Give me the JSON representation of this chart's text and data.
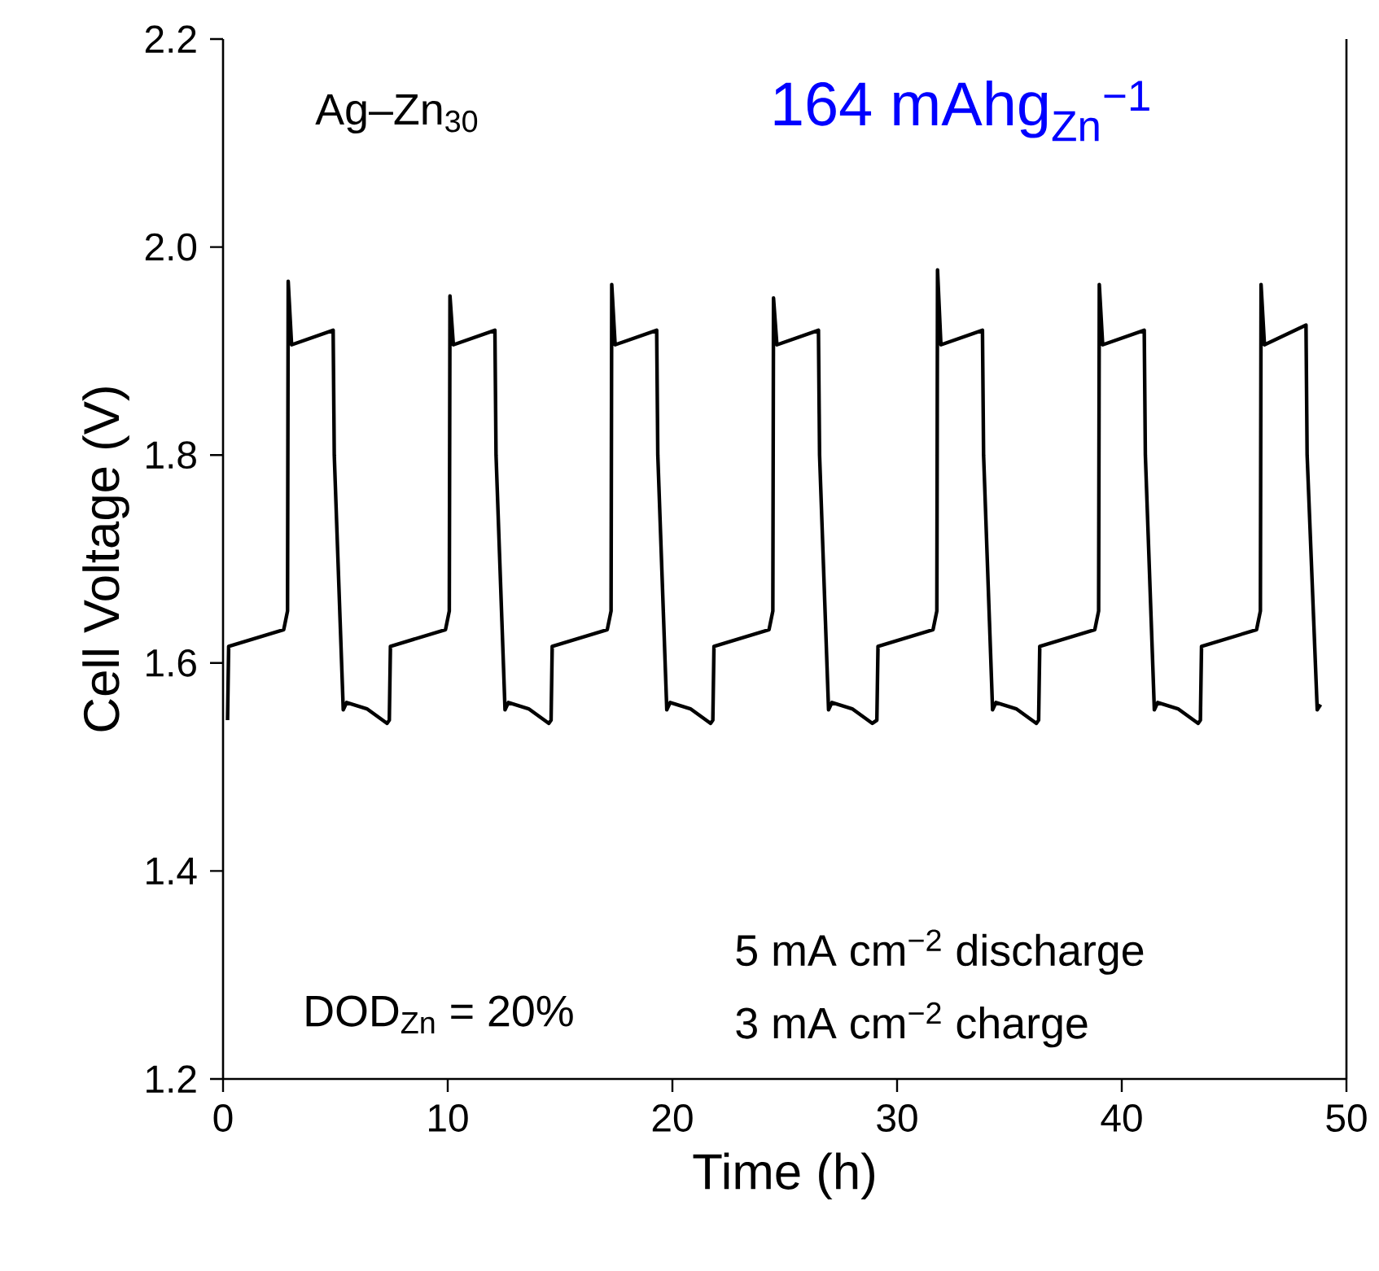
{
  "chart_data": {
    "type": "line",
    "xlabel": "Time (h)",
    "ylabel": "Cell Voltage (V)",
    "xlim": [
      0,
      50
    ],
    "ylim": [
      1.2,
      2.2
    ],
    "xticks": [
      0,
      10,
      20,
      30,
      40,
      50
    ],
    "yticks": [
      1.2,
      1.4,
      1.6,
      1.8,
      {
        "value": 2.0,
        "label": "2.0"
      },
      2.2
    ],
    "x": [
      0.2,
      0.25,
      2.7,
      2.87,
      2.9,
      3.05,
      4.9,
      4.95,
      5.35,
      5.5,
      6.4,
      7.3,
      7.4,
      7.45,
      9.9,
      10.07,
      10.1,
      10.25,
      12.1,
      12.15,
      12.55,
      12.7,
      13.6,
      14.5,
      14.6,
      14.65,
      17.1,
      17.27,
      17.3,
      17.45,
      19.3,
      19.35,
      19.75,
      19.9,
      20.8,
      21.7,
      21.8,
      21.85,
      24.3,
      24.47,
      24.5,
      24.65,
      26.5,
      26.55,
      26.95,
      27.1,
      28.0,
      28.9,
      29.1,
      29.15,
      31.6,
      31.77,
      31.8,
      31.95,
      33.8,
      33.85,
      34.25,
      34.4,
      35.3,
      36.2,
      36.3,
      36.35,
      38.8,
      38.97,
      39.0,
      39.15,
      41.0,
      41.05,
      41.45,
      41.6,
      42.5,
      43.4,
      43.5,
      43.55,
      46.0,
      46.17,
      46.2,
      46.35,
      48.2,
      48.25,
      48.7,
      48.85
    ],
    "series": [
      {
        "color": "#000000",
        "values": [
          1.545,
          1.616,
          1.632,
          1.65,
          1.967,
          1.906,
          1.92,
          1.8,
          1.555,
          1.562,
          1.556,
          1.542,
          1.545,
          1.616,
          1.632,
          1.65,
          1.953,
          1.906,
          1.92,
          1.8,
          1.555,
          1.562,
          1.556,
          1.542,
          1.545,
          1.616,
          1.632,
          1.65,
          1.964,
          1.906,
          1.92,
          1.8,
          1.555,
          1.562,
          1.556,
          1.542,
          1.545,
          1.616,
          1.632,
          1.65,
          1.951,
          1.906,
          1.92,
          1.8,
          1.555,
          1.562,
          1.556,
          1.542,
          1.545,
          1.616,
          1.632,
          1.65,
          1.978,
          1.906,
          1.92,
          1.8,
          1.555,
          1.562,
          1.556,
          1.542,
          1.545,
          1.616,
          1.632,
          1.65,
          1.964,
          1.906,
          1.92,
          1.8,
          1.555,
          1.562,
          1.556,
          1.542,
          1.545,
          1.616,
          1.632,
          1.65,
          1.964,
          1.906,
          1.925,
          1.8,
          1.555,
          1.56
        ]
      }
    ],
    "annotations": [
      "Ag–Zn$_{30}$",
      "164 mAhg$_{Zn}$$^{−1}$",
      "DOD$_{Zn}$ = 20%",
      "5 mA cm$^{−2}$ discharge",
      "3 mA cm$^{−2}$ charge"
    ]
  }
}
